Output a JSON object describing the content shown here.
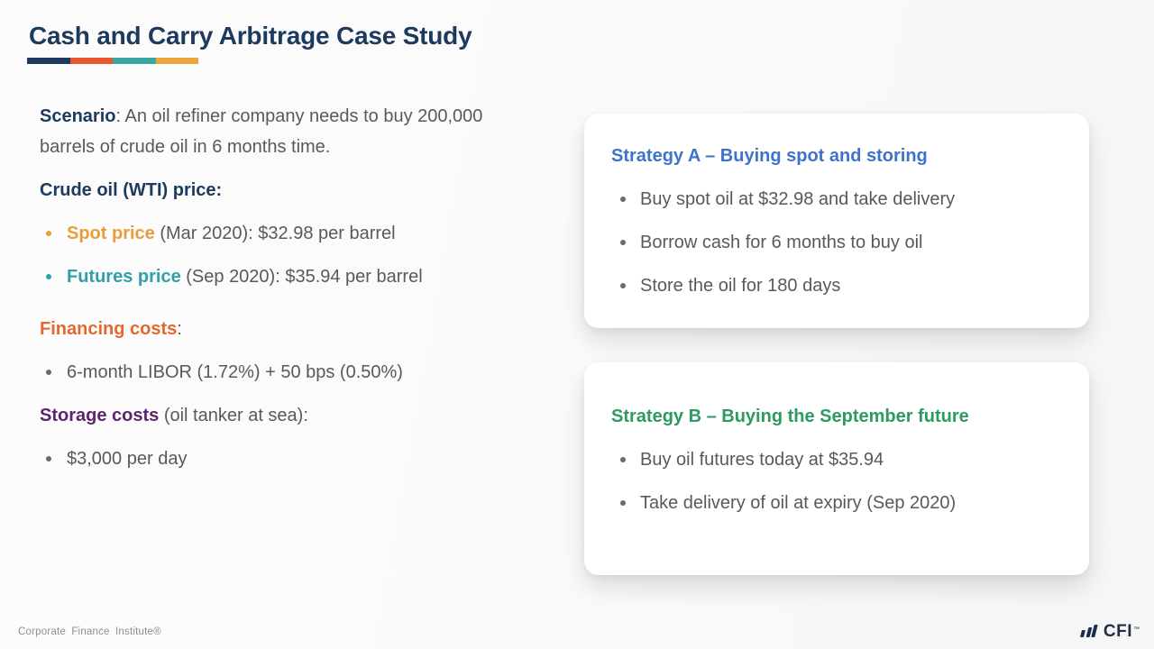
{
  "slide": {
    "title": "Cash and Carry Arbitrage Case Study",
    "accent_bar_colors": [
      "#1c3a5e",
      "#e8562f",
      "#3aa7a6",
      "#eca63d"
    ]
  },
  "left": {
    "scenario_label": "Scenario",
    "scenario_text": ": An oil refiner company needs to buy 200,000 barrels of crude oil in 6 months time.",
    "crude_heading": "Crude oil (WTI) price:",
    "spot_label": "Spot price",
    "spot_text": " (Mar 2020): $32.98 per barrel",
    "futures_label": "Futures price",
    "futures_text": " (Sep 2020): $35.94 per barrel",
    "financing_label": "Financing costs",
    "financing_suffix": ":",
    "financing_item": "6-month LIBOR (1.72%) + 50 bps (0.50%)",
    "storage_label": "Storage costs",
    "storage_text": " (oil tanker at sea):",
    "storage_item": "$3,000 per day"
  },
  "strategy_a": {
    "title": "Strategy A – Buying spot and storing",
    "title_color": "#3d74c9",
    "bullets": [
      "Buy spot oil at $32.98 and take delivery",
      "Borrow cash for 6 months to buy oil",
      "Store the oil for 180 days"
    ]
  },
  "strategy_b": {
    "title": "Strategy B – Buying the September future",
    "title_color": "#2d9a61",
    "bullets": [
      "Buy oil futures today at $35.94",
      "Take delivery of oil at expiry (Sep 2020)"
    ]
  },
  "footer": {
    "text": "Corporate Finance Institute®",
    "logo_text": "CFI",
    "logo_tm": "™"
  },
  "colors": {
    "navy": "#1c3a5e",
    "body_gray": "#595959",
    "spot_orange": "#eb9c3d",
    "futures_teal": "#2fa0a8",
    "financing_orange": "#e6672f",
    "storage_purple": "#5d2472",
    "strategy_a_blue": "#3d74c9",
    "strategy_b_green": "#2d9a61"
  }
}
